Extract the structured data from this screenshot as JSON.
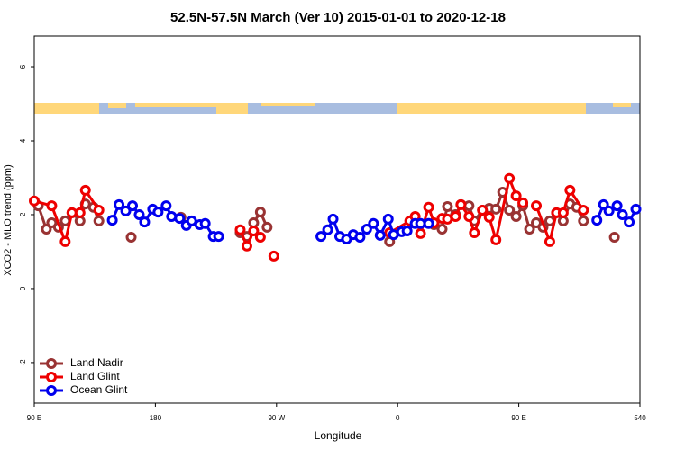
{
  "chart_data": {
    "type": "line",
    "title": "52.5N-57.5N March (Ver 10)   2015-01-01 to 2020-12-18",
    "xlabel": "Longitude",
    "ylabel": "XCO2 - MLO trend (ppm)",
    "xlim": [
      90,
      540
    ],
    "ylim": [
      -3.1,
      6.83
    ],
    "xticks": [
      {
        "value": 90,
        "label": "90 E"
      },
      180,
      {
        "value": 270,
        "label": "90 W"
      },
      {
        "value": 360,
        "label": "0"
      },
      {
        "value": 450,
        "label": "90 E"
      },
      540
    ],
    "yticks": [
      -2,
      0,
      2,
      4,
      6
    ],
    "legend": "bottom left",
    "series": [
      {
        "name": "Land Nadir",
        "color": "#993333",
        "x": [
          93,
          99,
          103,
          108,
          113,
          118,
          124,
          128,
          134,
          138,
          null,
          162,
          null,
          199,
          null,
          243,
          248,
          253,
          258,
          263,
          null,
          354,
          null,
          387,
          393,
          397,
          403,
          407,
          413,
          417,
          423,
          428,
          433,
          438,
          443,
          448,
          453,
          458,
          463,
          468,
          473,
          478,
          483,
          488,
          493,
          498,
          null,
          521
        ],
        "values": [
          2.24,
          1.61,
          1.78,
          1.66,
          1.83,
          2.05,
          1.83,
          2.29,
          2.2,
          1.83,
          null,
          1.39,
          null,
          1.93,
          null,
          1.51,
          1.41,
          1.78,
          2.07,
          1.66,
          null,
          1.27,
          null,
          1.73,
          1.61,
          2.22,
          2.0,
          2.27,
          2.24,
          1.83,
          2.12,
          2.17,
          2.15,
          2.61,
          2.12,
          1.95,
          2.24,
          1.61,
          1.78,
          1.66,
          1.83,
          2.05,
          1.83,
          2.29,
          2.2,
          1.83,
          null,
          1.39
        ]
      },
      {
        "name": "Land Glint",
        "color": "#ee0000",
        "x": [
          90,
          103,
          113,
          118,
          124,
          128,
          138,
          null,
          243,
          248,
          253,
          258,
          null,
          268,
          null,
          354,
          369,
          373,
          377,
          383,
          387,
          393,
          397,
          403,
          407,
          413,
          417,
          423,
          428,
          433,
          443,
          448,
          453,
          null,
          463,
          473,
          478,
          483,
          488,
          498
        ],
        "values": [
          2.37,
          2.24,
          1.27,
          2.05,
          2.05,
          2.66,
          2.12,
          null,
          1.59,
          1.15,
          1.56,
          1.39,
          null,
          0.88,
          null,
          1.51,
          1.83,
          1.95,
          1.49,
          2.2,
          1.78,
          1.9,
          1.88,
          1.95,
          2.27,
          1.95,
          1.51,
          2.12,
          1.93,
          1.32,
          2.98,
          2.51,
          2.32,
          null,
          2.24,
          1.27,
          2.05,
          2.05,
          2.66,
          2.12
        ]
      },
      {
        "name": "Ocean Glint",
        "color": "#0000ee",
        "x": [
          148,
          153,
          158,
          163,
          168,
          172,
          178,
          182,
          188,
          192,
          198,
          203,
          207,
          213,
          217,
          223,
          227,
          null,
          303,
          308,
          312,
          317,
          322,
          327,
          332,
          337,
          342,
          347,
          353,
          357,
          363,
          367,
          373,
          377,
          383,
          null,
          508,
          513,
          517,
          523,
          527,
          532,
          537
        ],
        "values": [
          1.85,
          2.27,
          2.1,
          2.24,
          2.0,
          1.8,
          2.15,
          2.07,
          2.24,
          1.95,
          1.9,
          1.71,
          1.83,
          1.73,
          1.76,
          1.41,
          1.41,
          null,
          1.41,
          1.59,
          1.88,
          1.41,
          1.34,
          1.46,
          1.39,
          1.61,
          1.76,
          1.44,
          1.88,
          1.46,
          1.54,
          1.56,
          1.76,
          1.76,
          1.76,
          null,
          1.85,
          2.27,
          2.1,
          2.24,
          2.0,
          1.8,
          2.15
        ]
      }
    ]
  }
}
